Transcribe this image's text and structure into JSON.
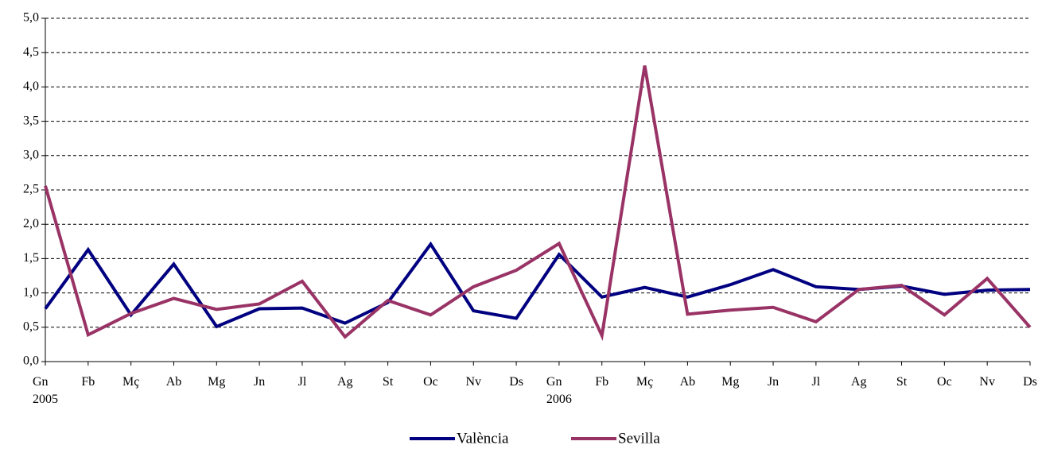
{
  "chart_data": {
    "type": "line",
    "categories": [
      "Gn\n2005",
      "Fb",
      "Mç",
      "Ab",
      "Mg",
      "Jn",
      "Jl",
      "Ag",
      "St",
      "Oc",
      "Nv",
      "Ds",
      "Gn\n2006",
      "Fb",
      "Mç",
      "Ab",
      "Mg",
      "Jn",
      "Jl",
      "Ag",
      "St",
      "Oc",
      "Nv",
      "Ds"
    ],
    "series": [
      {
        "name": "València",
        "color": "#000080",
        "values": [
          0.77,
          1.63,
          0.68,
          1.42,
          0.51,
          0.77,
          0.78,
          0.56,
          0.86,
          1.71,
          0.74,
          0.63,
          1.56,
          0.94,
          1.08,
          0.94,
          1.12,
          1.34,
          1.09,
          1.05,
          1.1,
          0.98,
          1.04,
          1.05
        ]
      },
      {
        "name": "Sevilla",
        "color": "#993366",
        "values": [
          2.56,
          0.39,
          0.7,
          0.92,
          0.76,
          0.84,
          1.17,
          0.36,
          0.89,
          0.68,
          1.09,
          1.33,
          1.72,
          0.38,
          4.31,
          0.69,
          0.75,
          0.79,
          0.58,
          1.05,
          1.11,
          0.68,
          1.21,
          0.5
        ]
      }
    ],
    "ylim": [
      0,
      5
    ],
    "yticks": [
      {
        "value": 0,
        "label": "0,0"
      },
      {
        "value": 0.5,
        "label": "0,5"
      },
      {
        "value": 1,
        "label": "1,0"
      },
      {
        "value": 1.5,
        "label": "1,5"
      },
      {
        "value": 2,
        "label": "2,0"
      },
      {
        "value": 2.5,
        "label": "2,5"
      },
      {
        "value": 3,
        "label": "3,0"
      },
      {
        "value": 3.5,
        "label": "3,5"
      },
      {
        "value": 4,
        "label": "4,0"
      },
      {
        "value": 4.5,
        "label": "4,5"
      },
      {
        "value": 5,
        "label": "5,0"
      }
    ],
    "grid": true,
    "legend": "bottom"
  }
}
